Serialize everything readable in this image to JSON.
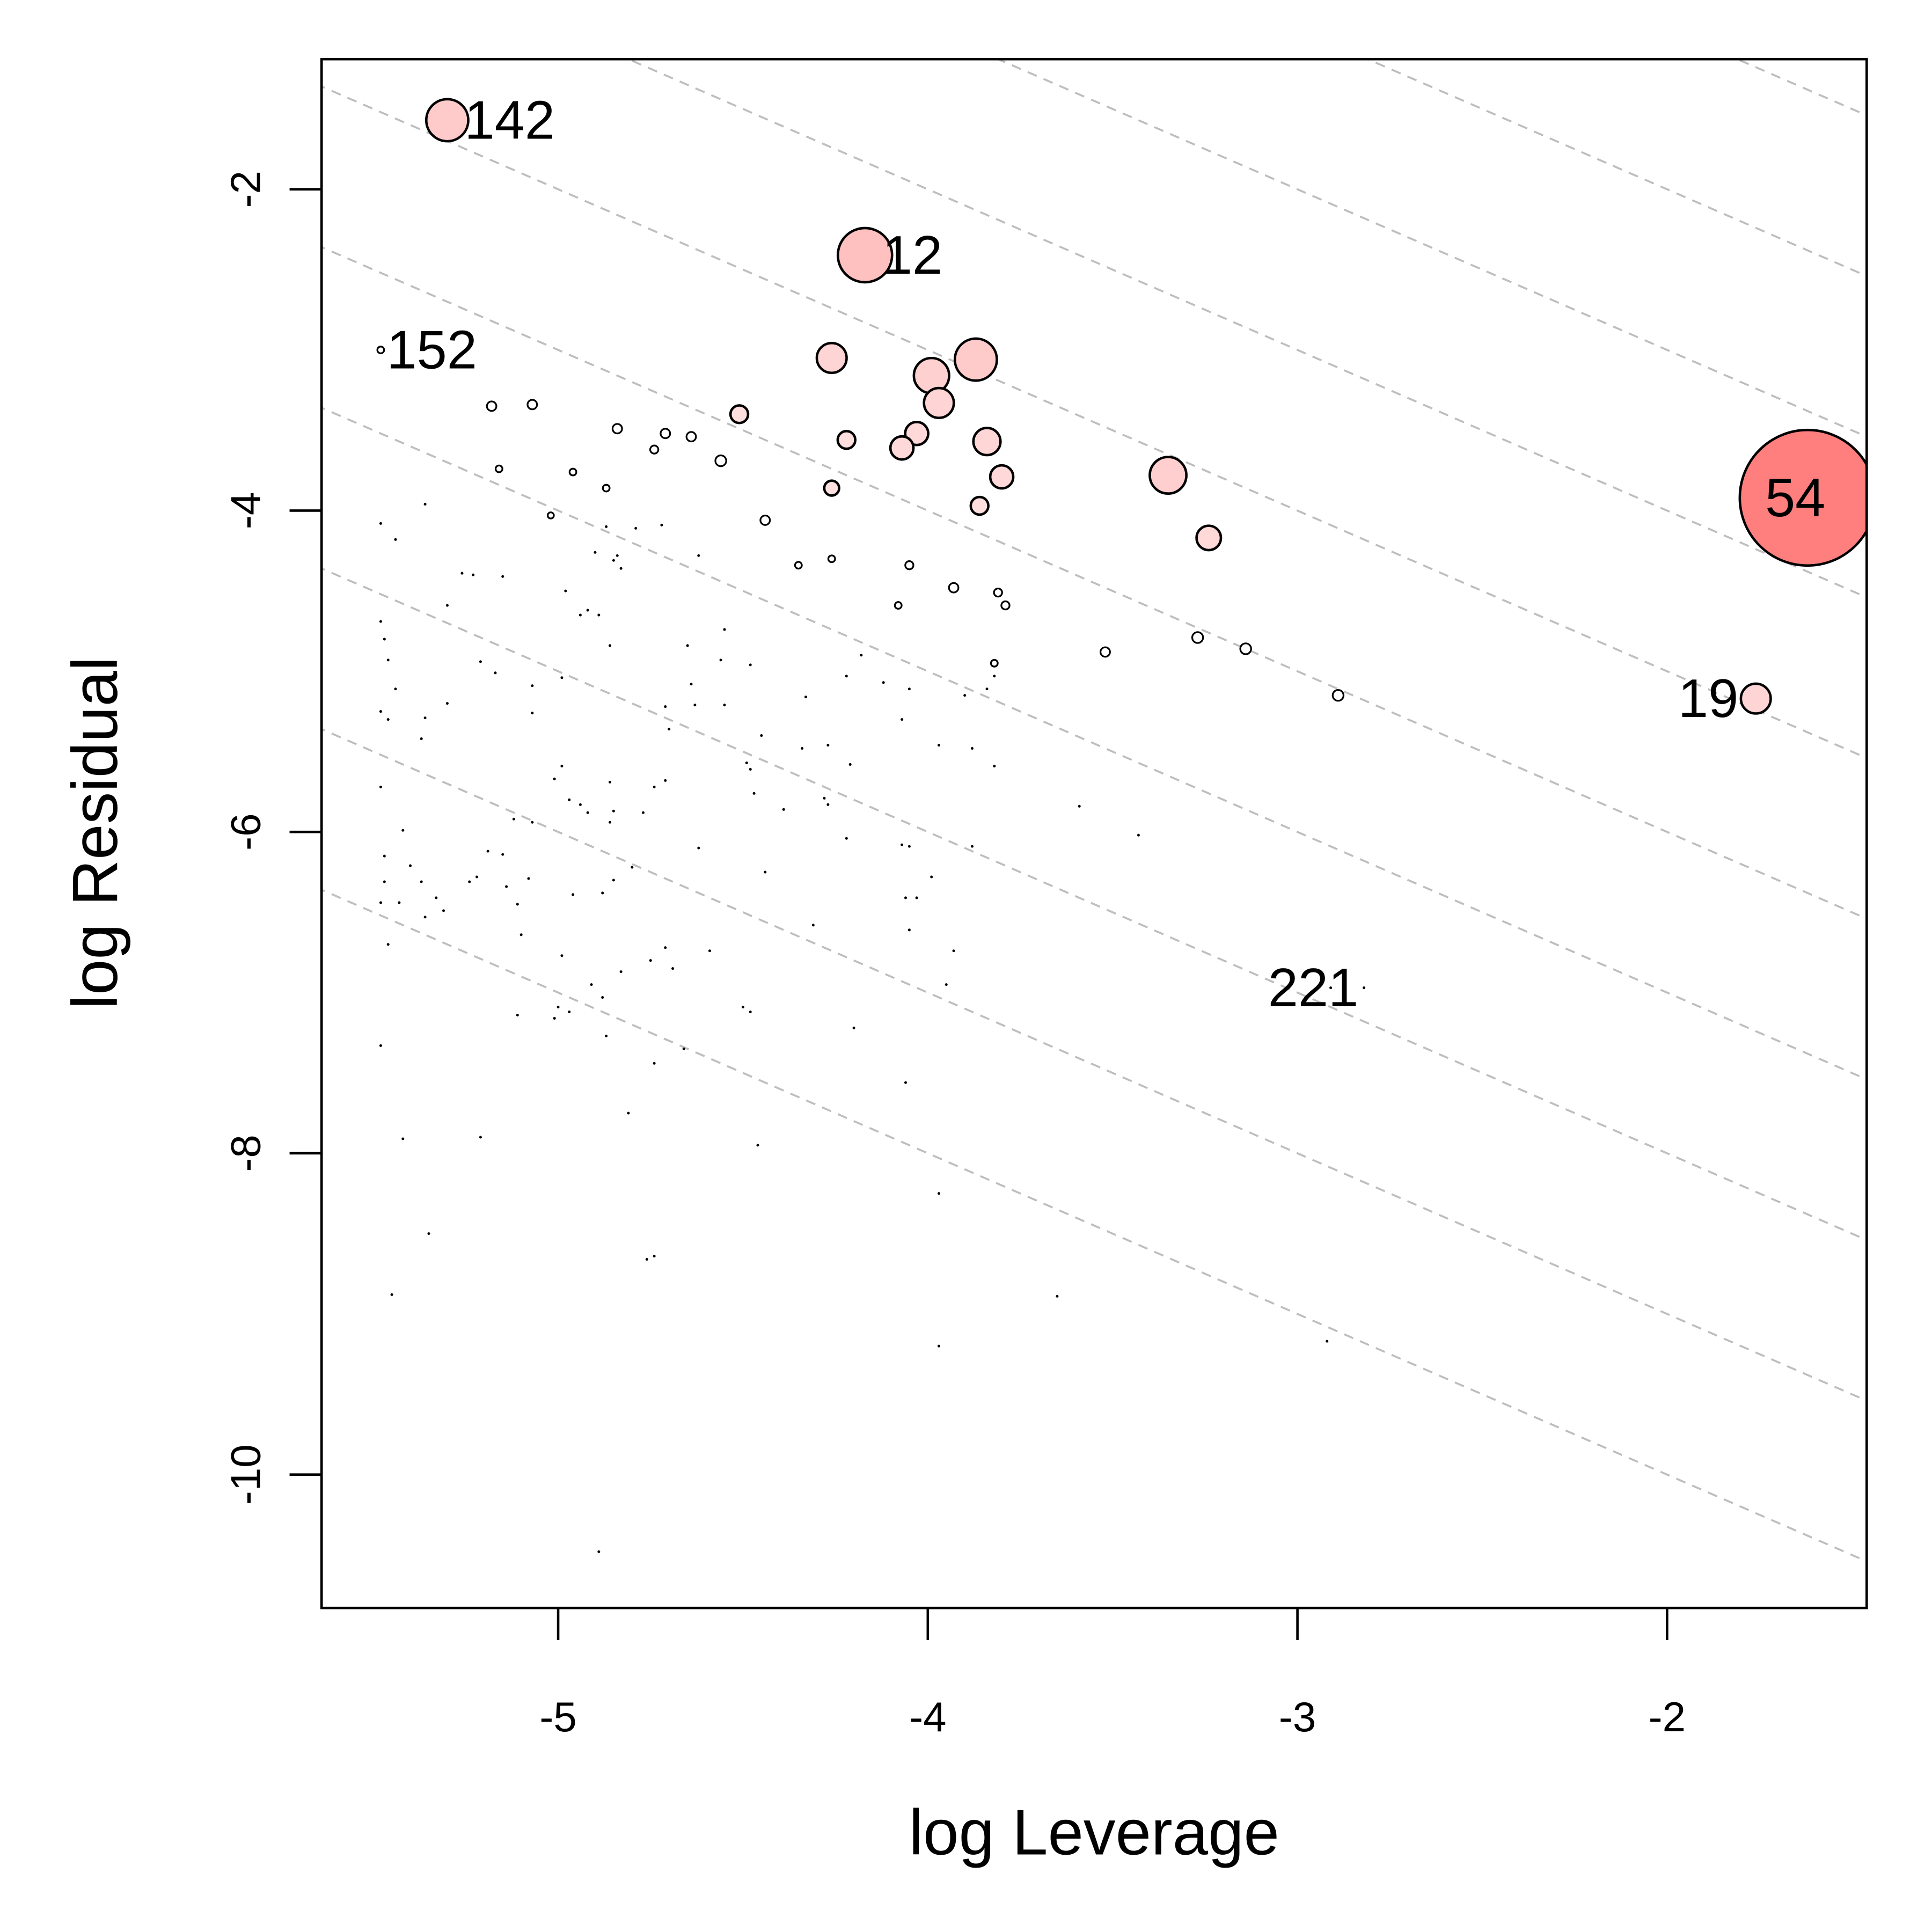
{
  "chart_data": {
    "type": "scatter",
    "title": "",
    "xlabel": "log Leverage",
    "ylabel": "log Residual",
    "xlim": [
      -5.64,
      -1.46
    ],
    "ylim": [
      -10.83,
      -1.19
    ],
    "xticks": [
      -5,
      -4,
      -3,
      -2
    ],
    "yticks": [
      -2,
      -4,
      -6,
      -8,
      -10
    ],
    "xtick_labels": [
      "-5",
      "-4",
      "-3",
      "-2"
    ],
    "ytick_labels": [
      "-2",
      "-4",
      "-6",
      "-8",
      "-10"
    ],
    "contour_lines": {
      "slope": -1,
      "intercepts": [
        -3,
        -4,
        -5,
        -6,
        -7,
        -8,
        -9,
        -10,
        -11,
        -12
      ],
      "color": "#bebebe",
      "style": "dashed"
    },
    "colors": {
      "low": "#ffffff",
      "high": "#ff7f7f",
      "dot": "#000000"
    },
    "labeled_points": [
      {
        "label": "142",
        "x": -5.3,
        "y": -1.57,
        "influence": 0.31,
        "pos": "right"
      },
      {
        "label": "12",
        "x": -4.17,
        "y": -2.41,
        "influence": 0.4,
        "pos": "right"
      },
      {
        "label": "152",
        "x": -5.48,
        "y": -3.0,
        "influence": 0.05,
        "pos": "right"
      },
      {
        "label": "54",
        "x": -1.62,
        "y": -3.92,
        "influence": 1.0,
        "pos": "left"
      },
      {
        "label": "19",
        "x": -1.76,
        "y": -5.17,
        "influence": 0.22,
        "pos": "left"
      },
      {
        "label": "221",
        "x": -2.82,
        "y": -6.97,
        "influence": 0.0,
        "pos": "left"
      }
    ],
    "bubbles": [
      {
        "x": -4.26,
        "y": -3.05,
        "influence": 0.22
      },
      {
        "x": -3.87,
        "y": -3.06,
        "influence": 0.31
      },
      {
        "x": -3.99,
        "y": -3.16,
        "influence": 0.26
      },
      {
        "x": -3.97,
        "y": -3.33,
        "influence": 0.22
      },
      {
        "x": -4.03,
        "y": -3.52,
        "influence": 0.17
      },
      {
        "x": -4.07,
        "y": -3.61,
        "influence": 0.17
      },
      {
        "x": -3.84,
        "y": -3.57,
        "influence": 0.2
      },
      {
        "x": -3.8,
        "y": -3.79,
        "influence": 0.17
      },
      {
        "x": -3.35,
        "y": -3.78,
        "influence": 0.27
      },
      {
        "x": -3.24,
        "y": -4.17,
        "influence": 0.18
      },
      {
        "x": -3.86,
        "y": -3.97,
        "influence": 0.13
      },
      {
        "x": -4.22,
        "y": -3.56,
        "influence": 0.13
      },
      {
        "x": -4.51,
        "y": -3.4,
        "influence": 0.13
      },
      {
        "x": -4.26,
        "y": -3.86,
        "influence": 0.11
      },
      {
        "x": -5.18,
        "y": -3.35,
        "influence": 0.07
      },
      {
        "x": -5.07,
        "y": -3.34,
        "influence": 0.07
      },
      {
        "x": -4.84,
        "y": -3.49,
        "influence": 0.07
      },
      {
        "x": -4.71,
        "y": -3.52,
        "influence": 0.07
      },
      {
        "x": -4.64,
        "y": -3.54,
        "influence": 0.07
      },
      {
        "x": -4.74,
        "y": -3.62,
        "influence": 0.06
      },
      {
        "x": -4.56,
        "y": -3.69,
        "influence": 0.08
      },
      {
        "x": -5.16,
        "y": -3.74,
        "influence": 0.05
      },
      {
        "x": -4.96,
        "y": -3.76,
        "influence": 0.05
      },
      {
        "x": -4.87,
        "y": -3.86,
        "influence": 0.05
      },
      {
        "x": -4.44,
        "y": -4.06,
        "influence": 0.07
      },
      {
        "x": -5.02,
        "y": -4.03,
        "influence": 0.04
      },
      {
        "x": -3.52,
        "y": -4.88,
        "influence": 0.07
      },
      {
        "x": -3.27,
        "y": -4.79,
        "influence": 0.08
      },
      {
        "x": -3.14,
        "y": -4.86,
        "influence": 0.08
      },
      {
        "x": -2.89,
        "y": -5.15,
        "influence": 0.08
      },
      {
        "x": -3.93,
        "y": -4.48,
        "influence": 0.07
      },
      {
        "x": -4.05,
        "y": -4.34,
        "influence": 0.06
      },
      {
        "x": -3.81,
        "y": -4.51,
        "influence": 0.06
      },
      {
        "x": -3.79,
        "y": -4.59,
        "influence": 0.06
      },
      {
        "x": -3.82,
        "y": -4.95,
        "influence": 0.05
      },
      {
        "x": -4.08,
        "y": -4.59,
        "influence": 0.05
      },
      {
        "x": -4.26,
        "y": -4.3,
        "influence": 0.05
      },
      {
        "x": -4.35,
        "y": -4.34,
        "influence": 0.05
      }
    ],
    "dots": [
      [
        -5.48,
        -4.08
      ],
      [
        -5.44,
        -4.18
      ],
      [
        -5.36,
        -3.96
      ],
      [
        -5.26,
        -4.39
      ],
      [
        -5.23,
        -4.4
      ],
      [
        -5.15,
        -4.41
      ],
      [
        -5.3,
        -4.59
      ],
      [
        -5.48,
        -4.69
      ],
      [
        -5.47,
        -4.8
      ],
      [
        -5.46,
        -4.93
      ],
      [
        -5.44,
        -5.11
      ],
      [
        -5.48,
        -5.25
      ],
      [
        -5.46,
        -5.3
      ],
      [
        -5.36,
        -5.29
      ],
      [
        -5.37,
        -5.42
      ],
      [
        -5.3,
        -5.2
      ],
      [
        -5.21,
        -4.94
      ],
      [
        -5.17,
        -5.01
      ],
      [
        -5.07,
        -5.09
      ],
      [
        -5.07,
        -5.26
      ],
      [
        -4.99,
        -5.04
      ],
      [
        -4.98,
        -4.5
      ],
      [
        -4.94,
        -4.65
      ],
      [
        -4.92,
        -4.62
      ],
      [
        -4.89,
        -4.65
      ],
      [
        -4.86,
        -4.84
      ],
      [
        -4.9,
        -4.26
      ],
      [
        -4.87,
        -4.1
      ],
      [
        -4.85,
        -4.31
      ],
      [
        -4.84,
        -4.28
      ],
      [
        -4.83,
        -4.36
      ],
      [
        -4.79,
        -4.11
      ],
      [
        -4.72,
        -4.09
      ],
      [
        -4.62,
        -4.28
      ],
      [
        -4.65,
        -4.84
      ],
      [
        -4.64,
        -5.08
      ],
      [
        -4.63,
        -5.21
      ],
      [
        -4.71,
        -5.22
      ],
      [
        -4.7,
        -5.36
      ],
      [
        -4.55,
        -4.74
      ],
      [
        -4.56,
        -4.93
      ],
      [
        -4.48,
        -4.96
      ],
      [
        -4.33,
        -5.16
      ],
      [
        -4.45,
        -5.4
      ],
      [
        -4.49,
        -5.57
      ],
      [
        -4.48,
        -5.61
      ],
      [
        -4.55,
        -5.21
      ],
      [
        -4.34,
        -5.48
      ],
      [
        -4.27,
        -5.46
      ],
      [
        -4.12,
        -5.07
      ],
      [
        -4.05,
        -5.11
      ],
      [
        -4.07,
        -5.3
      ],
      [
        -4.22,
        -5.03
      ],
      [
        -4.18,
        -4.9
      ],
      [
        -4.21,
        -5.58
      ],
      [
        -3.97,
        -5.46
      ],
      [
        -3.88,
        -5.48
      ],
      [
        -3.82,
        -5.59
      ],
      [
        -3.9,
        -5.15
      ],
      [
        -3.84,
        -5.11
      ],
      [
        -3.82,
        -5.03
      ],
      [
        -3.59,
        -5.84
      ],
      [
        -3.43,
        -6.02
      ],
      [
        -3.88,
        -6.09
      ],
      [
        -4.07,
        -6.08
      ],
      [
        -4.05,
        -6.09
      ],
      [
        -4.22,
        -6.04
      ],
      [
        -4.28,
        -5.79
      ],
      [
        -4.27,
        -5.83
      ],
      [
        -4.39,
        -5.86
      ],
      [
        -4.47,
        -5.76
      ],
      [
        -4.44,
        -6.25
      ],
      [
        -4.62,
        -6.1
      ],
      [
        -4.71,
        -5.68
      ],
      [
        -4.74,
        -5.72
      ],
      [
        -4.77,
        -5.88
      ],
      [
        -4.86,
        -5.69
      ],
      [
        -4.85,
        -5.87
      ],
      [
        -4.86,
        -5.94
      ],
      [
        -4.92,
        -5.88
      ],
      [
        -4.94,
        -5.83
      ],
      [
        -4.99,
        -5.59
      ],
      [
        -5.01,
        -5.67
      ],
      [
        -4.97,
        -5.8
      ],
      [
        -5.07,
        -5.94
      ],
      [
        -5.12,
        -5.92
      ],
      [
        -5.15,
        -6.14
      ],
      [
        -5.19,
        -6.12
      ],
      [
        -5.22,
        -6.28
      ],
      [
        -5.24,
        -6.31
      ],
      [
        -5.37,
        -6.31
      ],
      [
        -5.4,
        -6.21
      ],
      [
        -5.42,
        -5.99
      ],
      [
        -5.48,
        -5.72
      ],
      [
        -5.47,
        -6.15
      ],
      [
        -5.47,
        -6.31
      ],
      [
        -5.48,
        -6.44
      ],
      [
        -5.46,
        -6.7
      ],
      [
        -5.43,
        -6.44
      ],
      [
        -5.36,
        -6.53
      ],
      [
        -5.33,
        -6.41
      ],
      [
        -5.31,
        -6.49
      ],
      [
        -5.14,
        -6.34
      ],
      [
        -5.08,
        -6.29
      ],
      [
        -5.11,
        -6.45
      ],
      [
        -5.1,
        -6.64
      ],
      [
        -4.99,
        -6.77
      ],
      [
        -4.96,
        -6.39
      ],
      [
        -4.88,
        -6.38
      ],
      [
        -4.85,
        -6.3
      ],
      [
        -4.8,
        -6.22
      ],
      [
        -4.83,
        -6.87
      ],
      [
        -4.91,
        -6.95
      ],
      [
        -4.88,
        -7.03
      ],
      [
        -5.0,
        -7.09
      ],
      [
        -5.11,
        -7.14
      ],
      [
        -5.01,
        -7.16
      ],
      [
        -4.97,
        -7.12
      ],
      [
        -4.87,
        -7.27
      ],
      [
        -4.75,
        -6.8
      ],
      [
        -4.71,
        -6.72
      ],
      [
        -4.69,
        -6.85
      ],
      [
        -4.59,
        -6.74
      ],
      [
        -4.5,
        -7.09
      ],
      [
        -4.48,
        -7.12
      ],
      [
        -4.74,
        -7.44
      ],
      [
        -4.66,
        -7.35
      ],
      [
        -4.31,
        -6.58
      ],
      [
        -4.2,
        -7.22
      ],
      [
        -4.06,
        -7.56
      ],
      [
        -4.06,
        -6.41
      ],
      [
        -4.03,
        -6.41
      ],
      [
        -3.99,
        -6.28
      ],
      [
        -4.05,
        -6.61
      ],
      [
        -3.93,
        -6.74
      ],
      [
        -3.95,
        -6.95
      ],
      [
        -2.91,
        -6.97
      ],
      [
        -5.48,
        -7.33
      ],
      [
        -5.42,
        -7.91
      ],
      [
        -5.21,
        -7.9
      ],
      [
        -5.35,
        -8.5
      ],
      [
        -5.45,
        -8.88
      ],
      [
        -4.76,
        -8.66
      ],
      [
        -4.74,
        -8.64
      ],
      [
        -4.81,
        -7.75
      ],
      [
        -4.46,
        -7.95
      ],
      [
        -3.97,
        -8.25
      ],
      [
        -3.65,
        -8.89
      ],
      [
        -3.97,
        -9.2
      ],
      [
        -2.92,
        -9.17
      ],
      [
        -4.89,
        -10.48
      ]
    ]
  }
}
